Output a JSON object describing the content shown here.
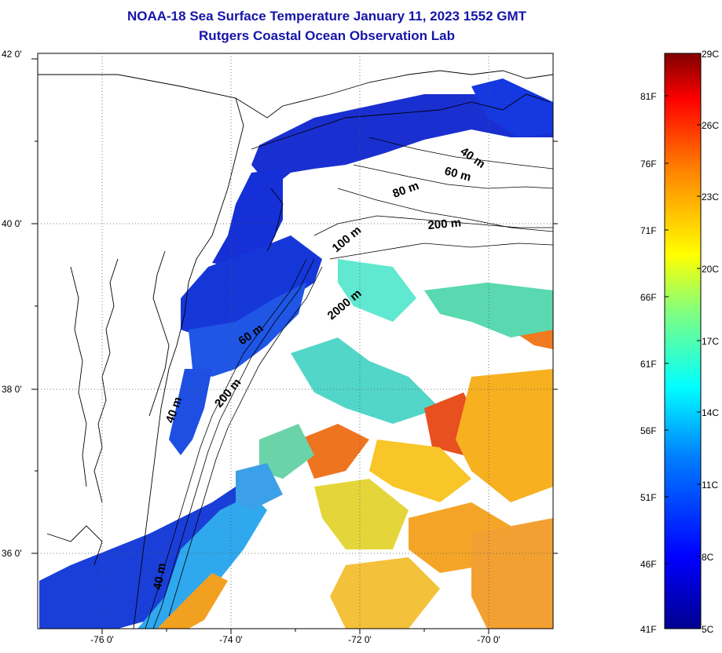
{
  "title": {
    "line1": "NOAA-18 Sea Surface Temperature January 11, 2023 1552 GMT",
    "line2": "Rutgers Coastal Ocean Observation Lab"
  },
  "axes": {
    "lat_labels": [
      "42 0'",
      "40 0'",
      "38 0'",
      "36 0'"
    ],
    "lon_labels": [
      "-76 0'",
      "-74 0'",
      "-72 0'",
      "-70 0'"
    ]
  },
  "isobaths": {
    "labels": [
      "40 m",
      "60 m",
      "80 m",
      "200 m",
      "100 m",
      "2000 m",
      "60 m",
      "200 m",
      "40 m",
      "40 m"
    ]
  },
  "colorbar": {
    "celsius": [
      "29C",
      "26C",
      "23C",
      "20C",
      "17C",
      "14C",
      "11C",
      "8C",
      "5C"
    ],
    "fahrenheit": [
      "81F",
      "76F",
      "71F",
      "66F",
      "61F",
      "56F",
      "51F",
      "46F",
      "41F"
    ],
    "colors": [
      "#00008f",
      "#0000ff",
      "#0080ff",
      "#00ffff",
      "#80ff80",
      "#ffff00",
      "#ff8000",
      "#ff0000",
      "#800000"
    ]
  },
  "colors": {
    "title": "#1515a8",
    "grid": "#000000",
    "land_outline": "#000000"
  }
}
